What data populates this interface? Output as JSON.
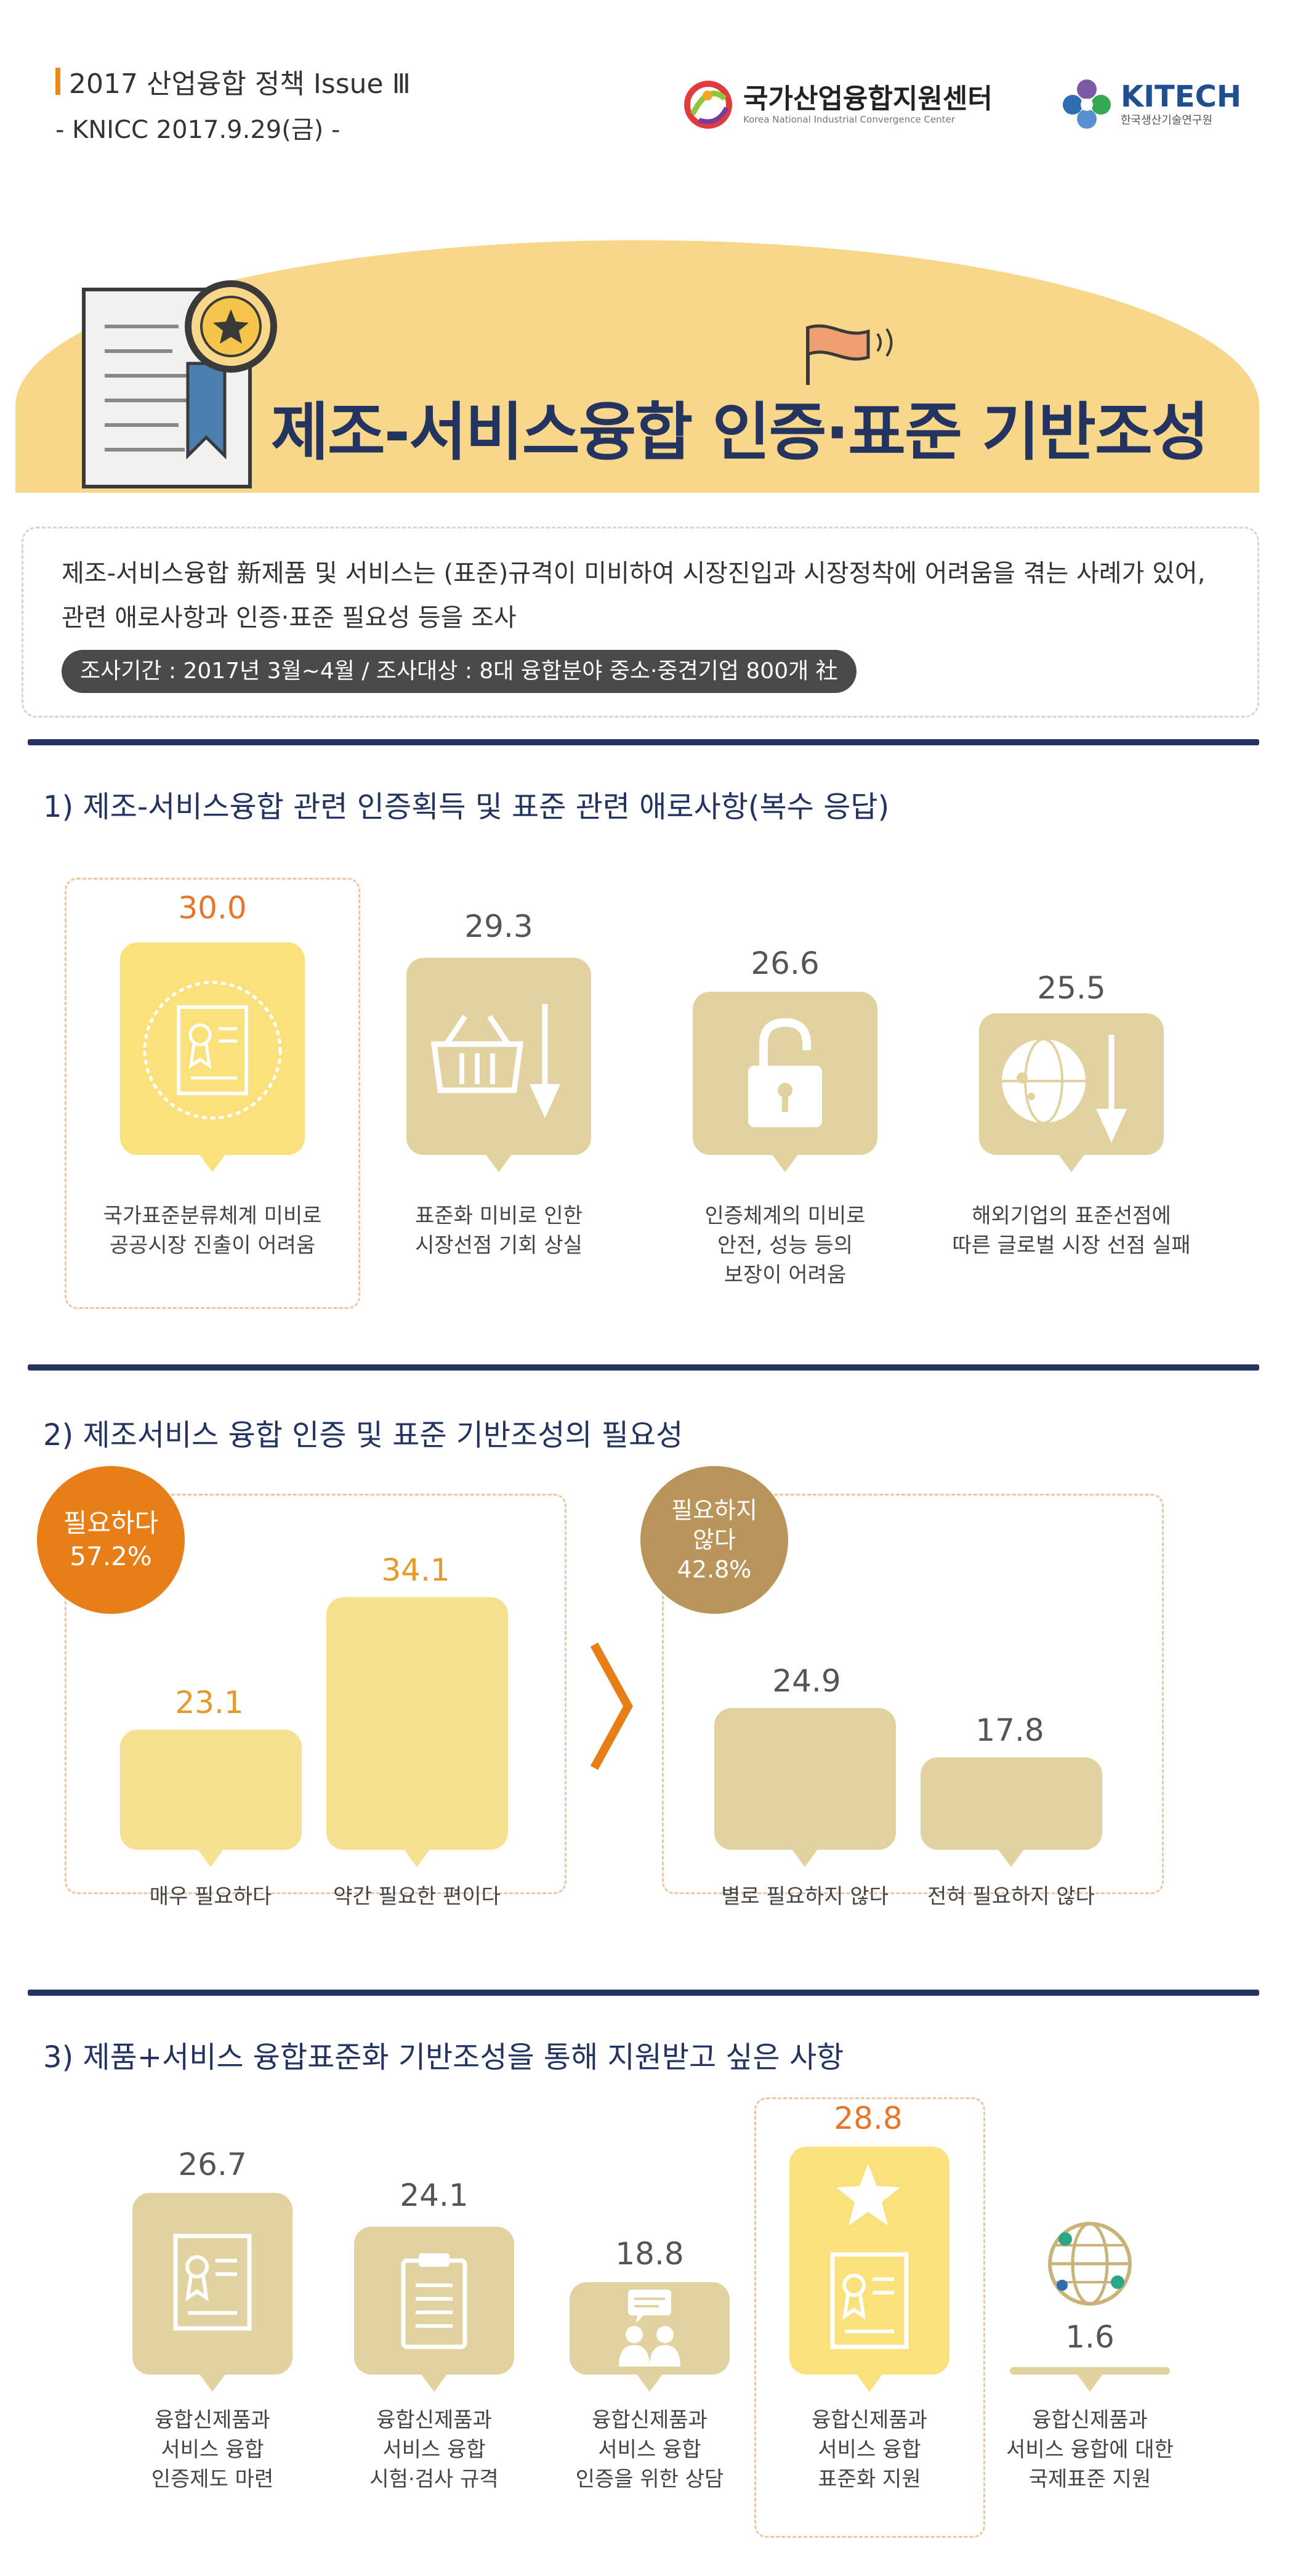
{
  "header": {
    "issue": "2017 산업융합 정책 Issue Ⅲ",
    "date": "- KNICC 2017.9.29(금) -",
    "logo_knicc": {
      "name": "국가산업융합지원센터",
      "sub": "Korea National Industrial Convergence Center"
    },
    "logo_kitech": {
      "name": "KITECH",
      "sub": "한국생산기술연구원"
    }
  },
  "title": "제조-서비스융합 인증·표준 기반조성",
  "intro": {
    "line1": "제조-서비스융합 新제품 및 서비스는 (표준)규격이 미비하여 시장진입과 시장정착에 어려움을 겪는 사례가 있어,",
    "line2": "관련 애로사항과 인증·표준 필요성 등을 조사",
    "survey": "조사기간 : 2017년 3월~4월 / 조사대상 : 8대 융합분야 중소·중견기업 800개 社"
  },
  "section1": {
    "title": "1) 제조-서비스융합 관련 인증획득 및 표준 관련 애로사항(복수 응답)",
    "items": [
      {
        "value": "30.0",
        "label1": "국가표준분류체계 미비로",
        "label2": "공공시장 진출이 어려움",
        "label3": "",
        "icon": "certificate-icon"
      },
      {
        "value": "29.3",
        "label1": "표준화 미비로 인한",
        "label2": "시장선점 기회 상실",
        "label3": "",
        "icon": "basket-down-icon"
      },
      {
        "value": "26.6",
        "label1": "인증체계의 미비로",
        "label2": "안전, 성능 등의",
        "label3": "보장이 어려움",
        "icon": "unlock-icon"
      },
      {
        "value": "25.5",
        "label1": "해외기업의 표준선점에",
        "label2": "따른 글로벌 시장 선점 실패",
        "label3": "",
        "icon": "globe-down-icon"
      }
    ]
  },
  "section2": {
    "title": "2) 제조서비스 융합 인증 및 표준 기반조성의 필요성",
    "need": {
      "label1": "필요하다",
      "label2": "57.2%"
    },
    "not_need": {
      "label1": "필요하지",
      "label2": "않다",
      "label3": "42.8%"
    },
    "bars": [
      {
        "value": "23.1",
        "label": "매우 필요하다"
      },
      {
        "value": "34.1",
        "label": "약간 필요한 편이다"
      },
      {
        "value": "24.9",
        "label": "별로 필요하지 않다"
      },
      {
        "value": "17.8",
        "label": "전혀 필요하지 않다"
      }
    ]
  },
  "section3": {
    "title": "3) 제품+서비스 융합표준화 기반조성을 통해 지원받고 싶은 사항",
    "items": [
      {
        "value": "26.7",
        "label1": "융합신제품과",
        "label2": "서비스 융합",
        "label3": "인증제도 마련",
        "icon": "certificate-icon"
      },
      {
        "value": "24.1",
        "label1": "융합신제품과",
        "label2": "서비스 융합",
        "label3": "시험·검사 규격",
        "icon": "clipboard-icon"
      },
      {
        "value": "18.8",
        "label1": "융합신제품과",
        "label2": "서비스 융합",
        "label3": "인증을 위한 상담",
        "icon": "consulting-icon"
      },
      {
        "value": "28.8",
        "label1": "융합신제품과",
        "label2": "서비스 융합",
        "label3": "표준화 지원",
        "icon": "star-certificate-icon"
      },
      {
        "value": "1.6",
        "label1": "융합신제품과",
        "label2": "서비스 융합에 대한",
        "label3": "국제표준 지원",
        "icon": "globe-network-icon"
      }
    ]
  }
}
